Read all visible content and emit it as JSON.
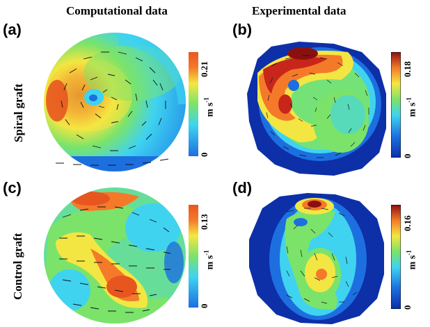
{
  "columns": {
    "computational": "Computational data",
    "experimental": "Experimental data"
  },
  "rows": {
    "spiral": "Spiral graft",
    "control": "Control graft"
  },
  "panels": {
    "a": {
      "label": "(a)",
      "cbar_max": "0.21",
      "cbar_min": "0",
      "unit": "m s",
      "unit_exp": "-1"
    },
    "b": {
      "label": "(b)",
      "cbar_max": "0.18",
      "cbar_min": "0",
      "unit": "m s",
      "unit_exp": "-1"
    },
    "c": {
      "label": "(c)",
      "cbar_max": "0.13",
      "cbar_min": "0",
      "unit": "m s",
      "unit_exp": "-1"
    },
    "d": {
      "label": "(d)",
      "cbar_max": "0.16",
      "cbar_min": "0",
      "unit": "m s",
      "unit_exp": "-1"
    }
  },
  "colors": {
    "jet_blue": "#1d6fe0",
    "jet_cyan": "#3fd3f0",
    "jet_green": "#7be36a",
    "jet_yellow": "#f4e642",
    "jet_orange": "#f47a2a",
    "jet_red": "#c8261a",
    "dark_blue": "#0d2fa8"
  }
}
